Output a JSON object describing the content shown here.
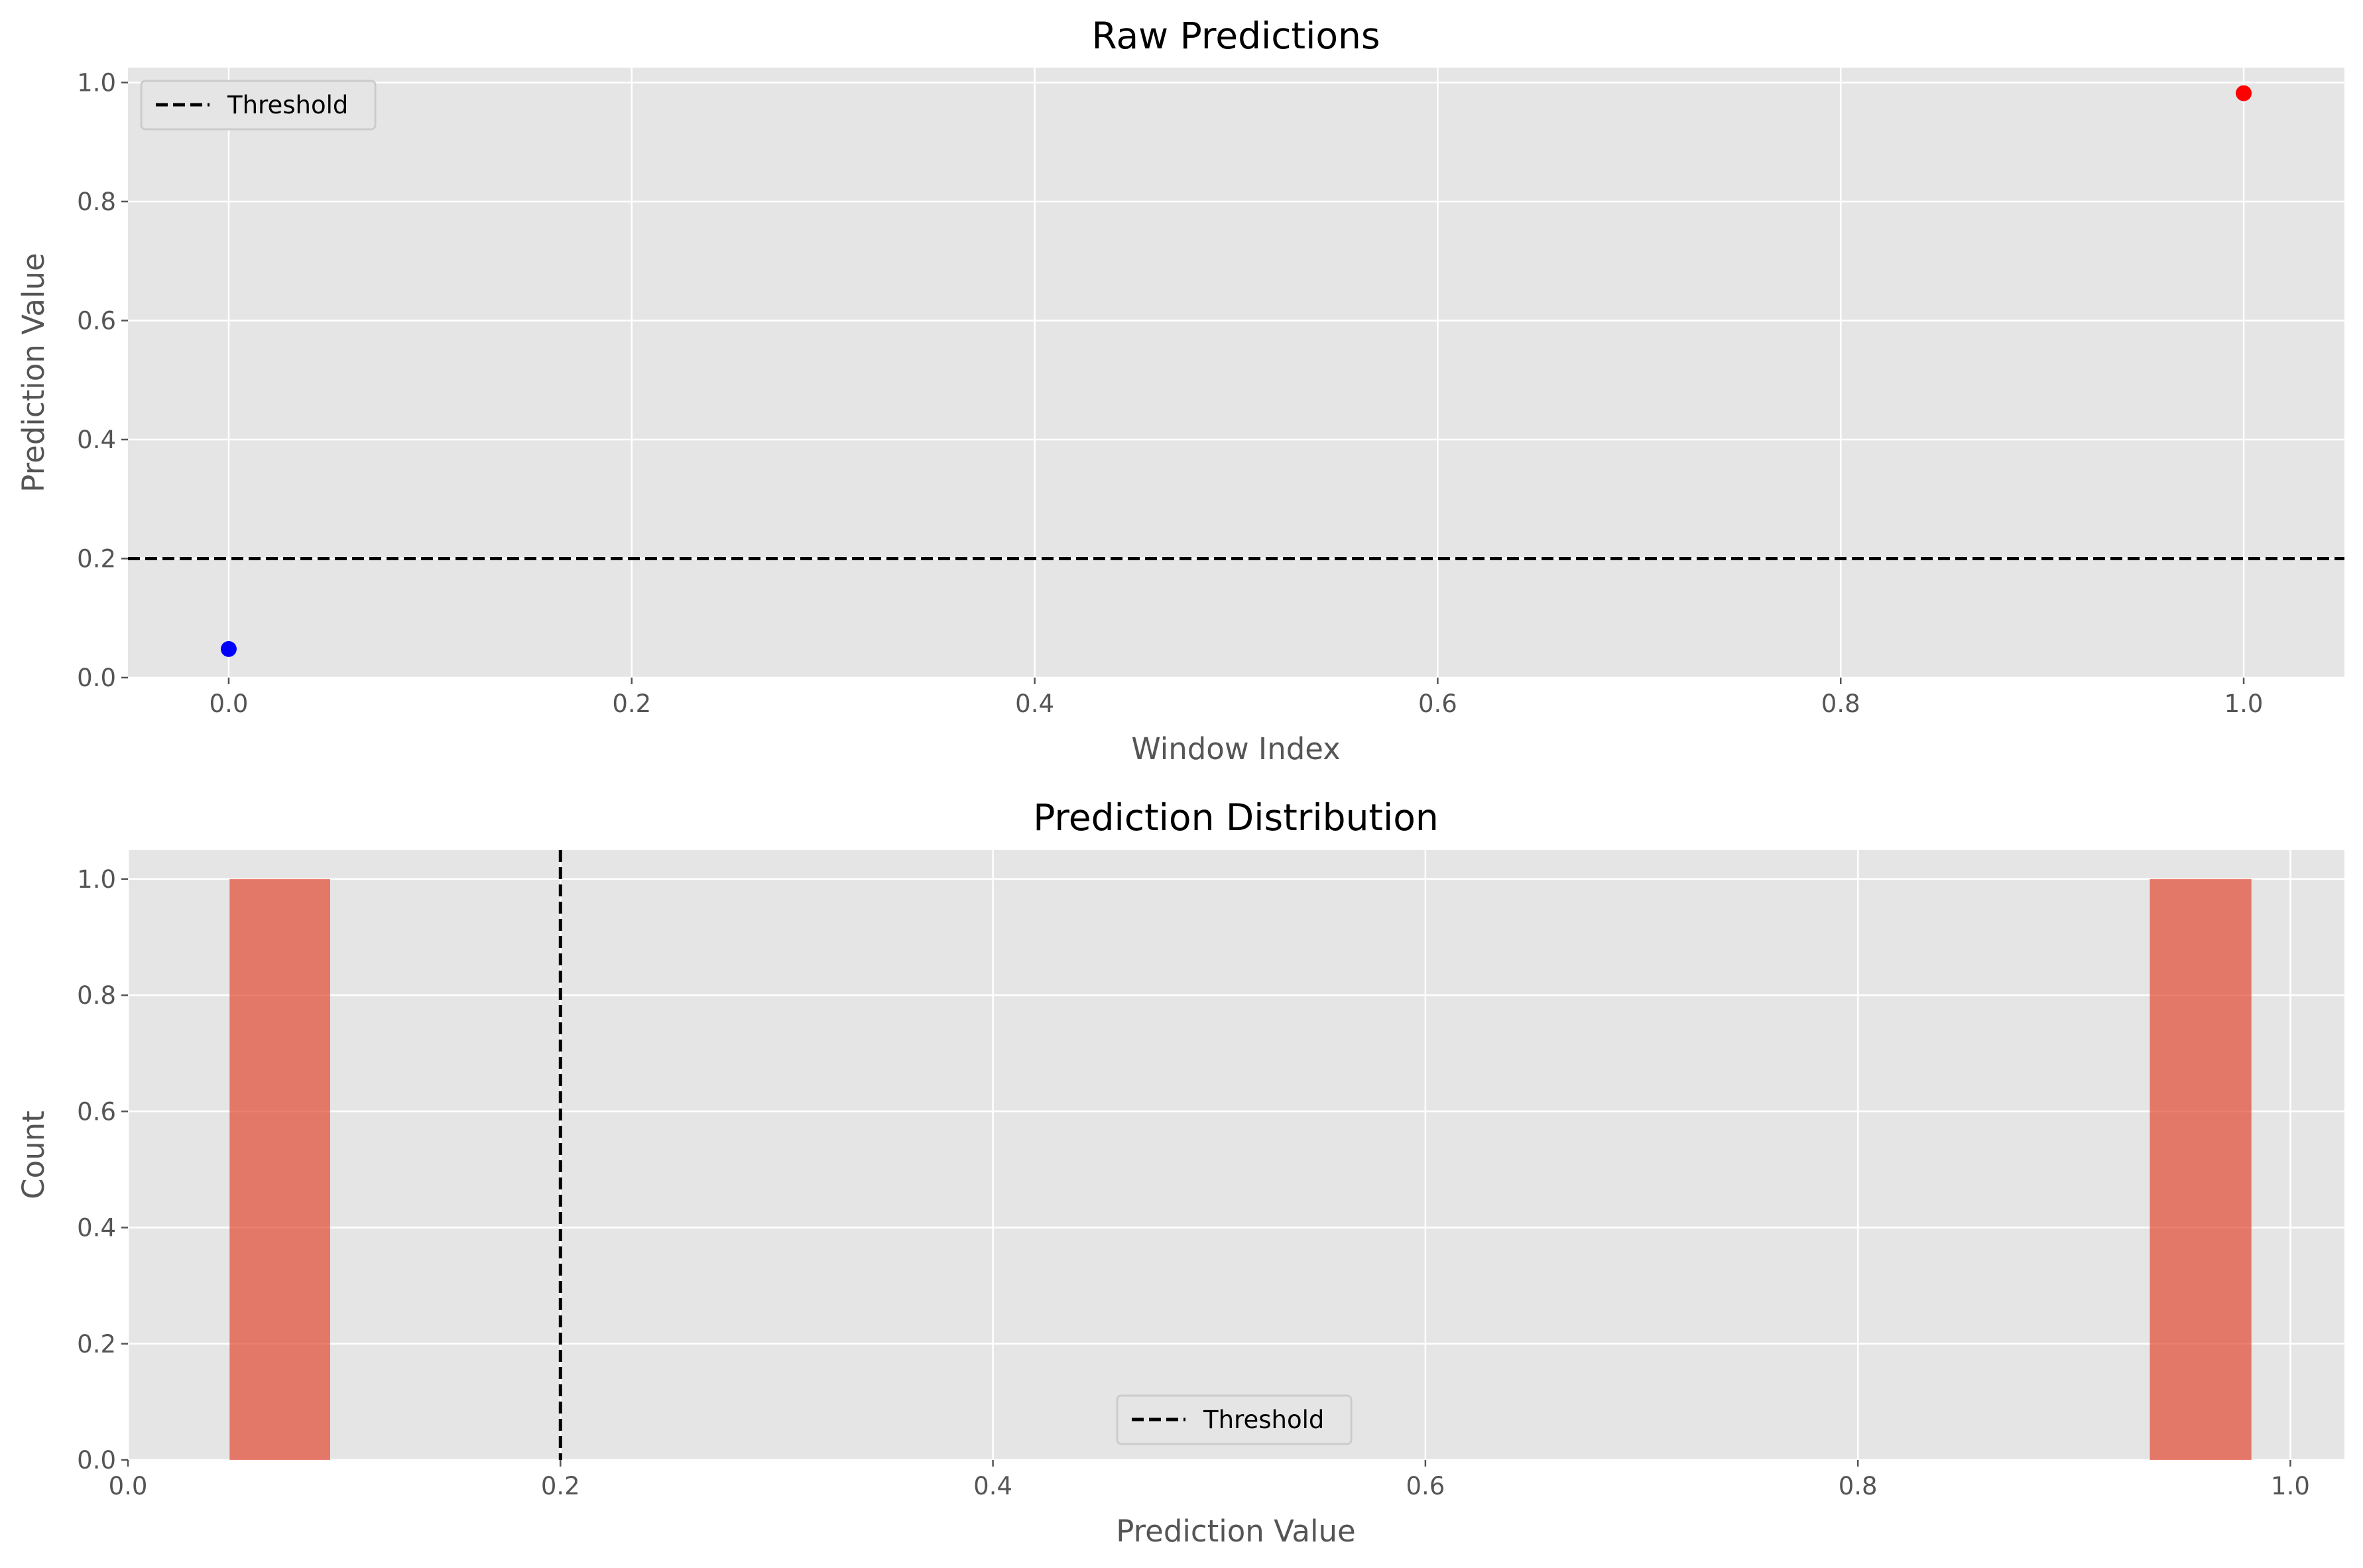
{
  "chart_data": [
    {
      "type": "scatter",
      "title": "Raw Predictions",
      "xlabel": "Window Index",
      "ylabel": "Prediction Value",
      "xlim": [
        -0.05,
        1.05
      ],
      "ylim": [
        0.0,
        1.025
      ],
      "xticks": [
        "0.0",
        "0.2",
        "0.4",
        "0.6",
        "0.8",
        "1.0"
      ],
      "yticks": [
        "0.0",
        "0.2",
        "0.4",
        "0.6",
        "0.8",
        "1.0"
      ],
      "grid": true,
      "legend": {
        "placement": "upper-left",
        "entries": [
          "Threshold"
        ]
      },
      "threshold": 0.2,
      "points": [
        {
          "x": 0,
          "y": 0.048,
          "color": "#0000ff"
        },
        {
          "x": 1,
          "y": 0.982,
          "color": "#ff0000"
        }
      ],
      "colors": {
        "background": "#e5e5e5",
        "grid": "#ffffff",
        "threshold": "#000000"
      }
    },
    {
      "type": "bar",
      "title": "Prediction Distribution",
      "xlabel": "Prediction Value",
      "ylabel": "Count",
      "xlim": [
        0.0,
        1.025
      ],
      "ylim": [
        0.0,
        1.05
      ],
      "xticks": [
        "0.0",
        "0.2",
        "0.4",
        "0.6",
        "0.8",
        "1.0"
      ],
      "yticks": [
        "0.0",
        "0.2",
        "0.4",
        "0.6",
        "0.8",
        "1.0"
      ],
      "grid": true,
      "legend": {
        "placement": "lower-center",
        "entries": [
          "Threshold"
        ]
      },
      "threshold": 0.2,
      "bins": [
        {
          "start": 0.047,
          "end": 0.0935,
          "count": 1
        },
        {
          "start": 0.935,
          "end": 0.982,
          "count": 1
        }
      ],
      "colors": {
        "background": "#e5e5e5",
        "grid": "#ffffff",
        "bar": "#e24a33",
        "threshold": "#000000"
      }
    }
  ]
}
